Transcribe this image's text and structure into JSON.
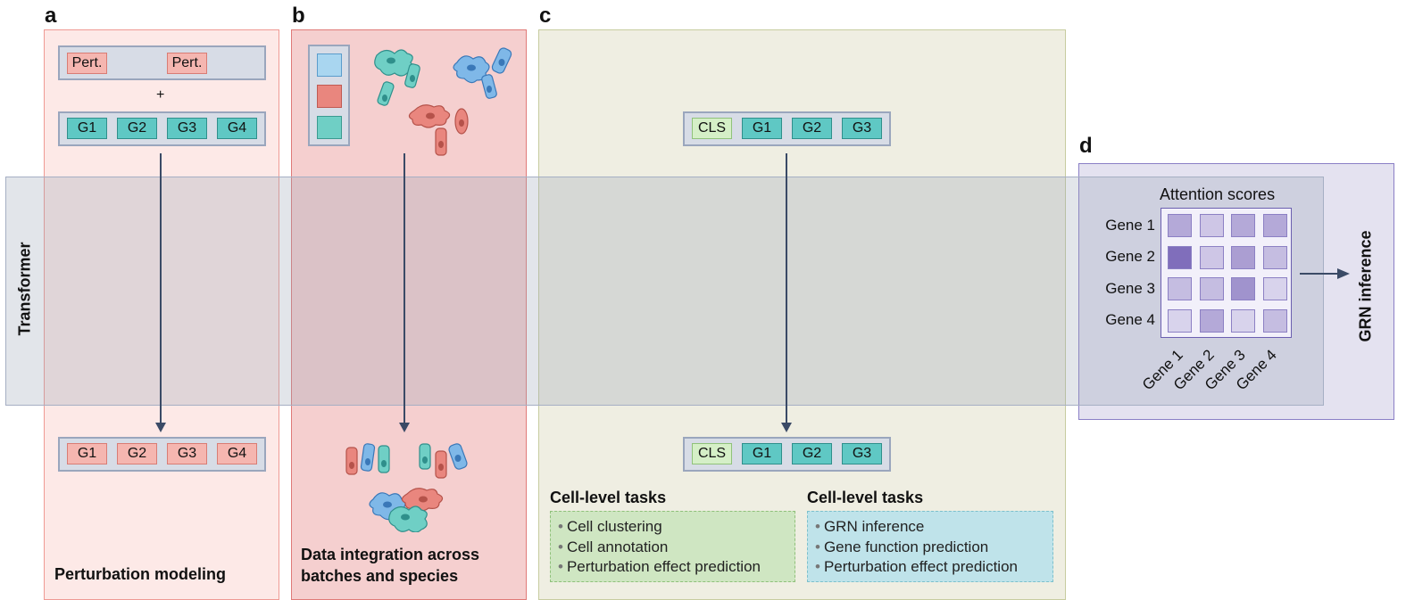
{
  "panels": {
    "a": {
      "letter": "a",
      "caption": "Perturbation modeling"
    },
    "b": {
      "letter": "b",
      "caption_line1": "Data integration across",
      "caption_line2": "batches and species"
    },
    "c": {
      "letter": "c"
    },
    "d": {
      "letter": "d"
    }
  },
  "transformer_label": "Transformer",
  "panel_a": {
    "pert_tokens": [
      "Pert.",
      "Pert."
    ],
    "plus": "+",
    "gene_tokens": [
      "G1",
      "G2",
      "G3",
      "G4"
    ],
    "output_tokens": [
      "G1",
      "G2",
      "G3",
      "G4"
    ]
  },
  "panel_c": {
    "input_tokens": [
      "CLS",
      "G1",
      "G2",
      "G3"
    ],
    "output_tokens": [
      "CLS",
      "G1",
      "G2",
      "G3"
    ],
    "task_groups": [
      {
        "title": "Cell-level tasks",
        "items": [
          "Cell clustering",
          "Cell annotation",
          "Perturbation effect prediction"
        ]
      },
      {
        "title": "Cell-level tasks",
        "items": [
          "GRN inference",
          "Gene function prediction",
          "Perturbation effect prediction"
        ]
      }
    ]
  },
  "panel_d": {
    "title": "Attention scores",
    "row_labels": [
      "Gene 1",
      "Gene 2",
      "Gene 3",
      "Gene 4"
    ],
    "col_labels": [
      "Gene 1",
      "Gene 2",
      "Gene 3",
      "Gene 4"
    ],
    "attention_matrix": [
      [
        0.45,
        0.2,
        0.45,
        0.45
      ],
      [
        0.95,
        0.2,
        0.55,
        0.3
      ],
      [
        0.3,
        0.3,
        0.65,
        0.1
      ],
      [
        0.1,
        0.45,
        0.1,
        0.3
      ]
    ],
    "output_label": "GRN inference"
  },
  "colors": {
    "gene_token": "#5fc8c4",
    "pert_token": "#f5b6b0",
    "cls_token": "#d5efc7",
    "arrow": "#3a4a66",
    "attention_base": "#7b68b8"
  }
}
